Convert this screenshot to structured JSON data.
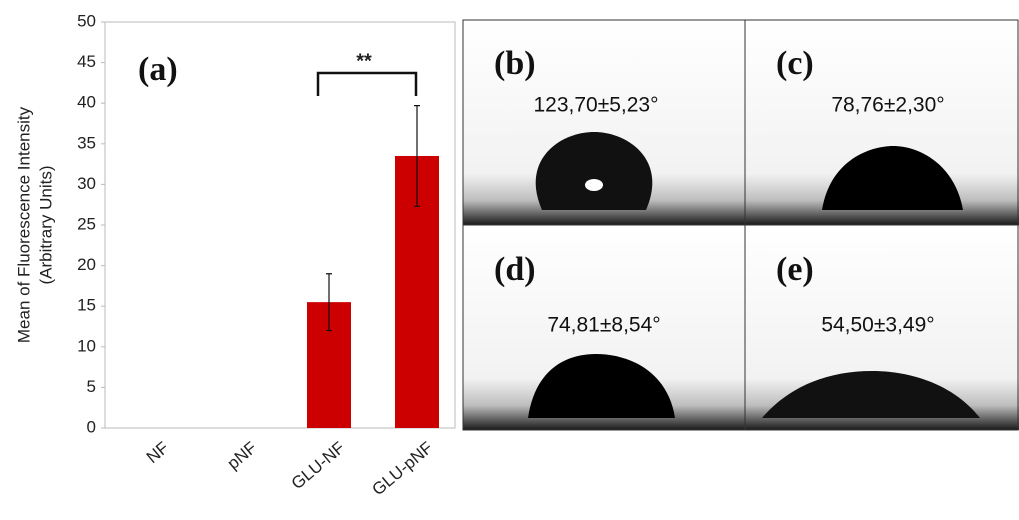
{
  "chart_data": {
    "type": "bar",
    "panel_label": "(a)",
    "y_label": [
      "Mean of Fluorescence Intensity",
      "(Arbitrary Units)"
    ],
    "categories": [
      "NF",
      "pNF",
      "GLU-NF",
      "GLU-pNF"
    ],
    "values": [
      0,
      0,
      15.5,
      33.5
    ],
    "errors": [
      0,
      0,
      3.5,
      6.2
    ],
    "color": "#cc0000",
    "ylim": [
      0,
      50
    ],
    "yticks": [
      0,
      5,
      10,
      15,
      20,
      25,
      30,
      35,
      40,
      45,
      50
    ],
    "annotation": "**"
  },
  "panels": [
    {
      "label": "(b)",
      "angle": "123,70±5,23°"
    },
    {
      "label": "(c)",
      "angle": "78,76±2,30°"
    },
    {
      "label": "(d)",
      "angle": "74,81±8,54°"
    },
    {
      "label": "(e)",
      "angle": "54,50±3,49°"
    }
  ]
}
